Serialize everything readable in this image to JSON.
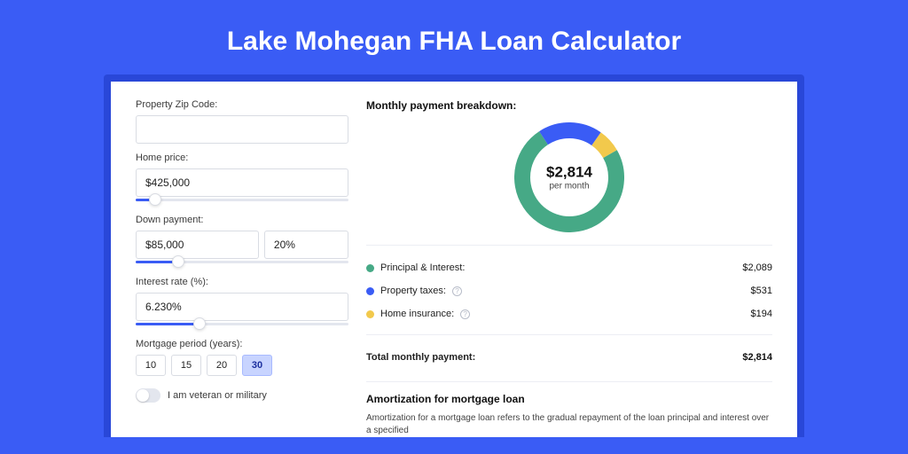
{
  "title": "Lake Mohegan FHA Loan Calculator",
  "colors": {
    "page_bg": "#3a5cf5",
    "panel_border": "#2947d8",
    "text_dark": "#111111",
    "muted": "#444444"
  },
  "form": {
    "zip": {
      "label": "Property Zip Code:",
      "value": ""
    },
    "home_price": {
      "label": "Home price:",
      "value": "$425,000",
      "slider_pct": 9
    },
    "down_payment": {
      "label": "Down payment:",
      "value": "$85,000",
      "pct_value": "20%",
      "slider_pct": 20
    },
    "interest": {
      "label": "Interest rate (%):",
      "value": "6.230%",
      "slider_pct": 30
    },
    "period": {
      "label": "Mortgage period (years):",
      "options": [
        "10",
        "15",
        "20",
        "30"
      ],
      "selected": "30"
    },
    "veteran": {
      "label": "I am veteran or military",
      "checked": false
    }
  },
  "breakdown": {
    "title": "Monthly payment breakdown:",
    "center_value": "$2,814",
    "center_sub": "per month",
    "donut": {
      "size": 124,
      "thickness": 18,
      "segments": [
        {
          "label": "Principal & Interest:",
          "value": "$2,089",
          "color": "#46a986",
          "pct": 74,
          "has_info": false
        },
        {
          "label": "Property taxes:",
          "value": "$531",
          "color": "#3a5cf5",
          "pct": 19,
          "has_info": true
        },
        {
          "label": "Home insurance:",
          "value": "$194",
          "color": "#f2c94c",
          "pct": 7,
          "has_info": true
        }
      ]
    },
    "total": {
      "label": "Total monthly payment:",
      "value": "$2,814"
    }
  },
  "amortization": {
    "title": "Amortization for mortgage loan",
    "text": "Amortization for a mortgage loan refers to the gradual repayment of the loan principal and interest over a specified"
  }
}
